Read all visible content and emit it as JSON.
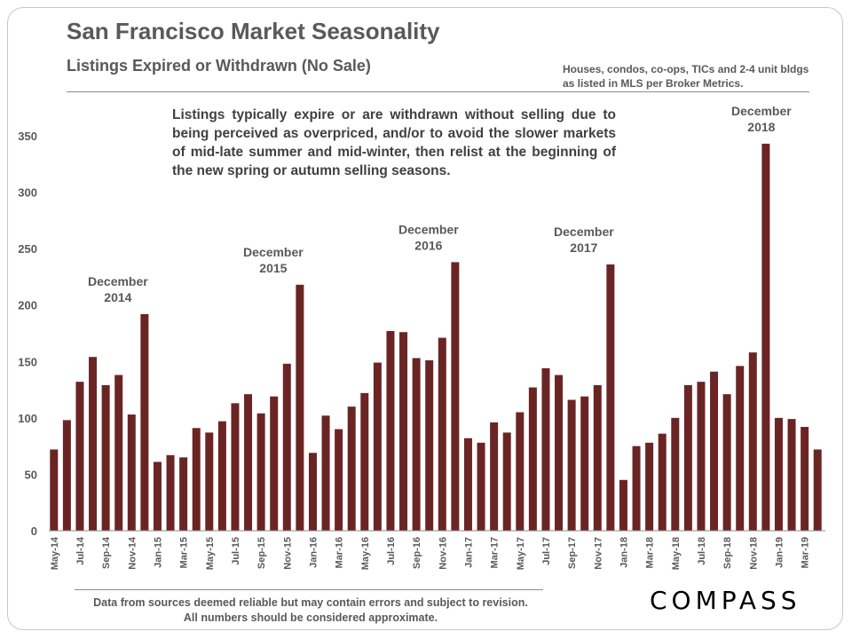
{
  "header": {
    "title": "San Francisco Market Seasonality",
    "subtitle": "Listings Expired or Withdrawn (No Sale)",
    "note": "Houses, condos, co-ops, TICs and 2-4 unit bldgs as listed in MLS per Broker Metrics."
  },
  "callout": "Listings typically expire or are withdrawn without selling due to being perceived as overpriced, and/or to avoid the slower markets of mid-late summer and mid-winter, then relist at the beginning of the new spring or autumn selling seasons.",
  "footer": {
    "disclaimer": "Data from sources deemed reliable but may contain errors and subject to revision.  All numbers should be considered approximate.",
    "logo": "COMPASS"
  },
  "colors": {
    "bar": "#6b2424",
    "text": "#595959"
  },
  "chart_data": {
    "type": "bar",
    "ylim": [
      0,
      350
    ],
    "yticks": [
      0,
      50,
      100,
      150,
      200,
      250,
      300,
      350
    ],
    "categories": [
      "May-14",
      "Jun-14",
      "Jul-14",
      "Aug-14",
      "Sep-14",
      "Oct-14",
      "Nov-14",
      "Dec-14",
      "Jan-15",
      "Feb-15",
      "Mar-15",
      "Apr-15",
      "May-15",
      "Jun-15",
      "Jul-15",
      "Aug-15",
      "Sep-15",
      "Oct-15",
      "Nov-15",
      "Dec-15",
      "Jan-16",
      "Feb-16",
      "Mar-16",
      "Apr-16",
      "May-16",
      "Jun-16",
      "Jul-16",
      "Aug-16",
      "Sep-16",
      "Oct-16",
      "Nov-16",
      "Dec-16",
      "Jan-17",
      "Feb-17",
      "Mar-17",
      "Apr-17",
      "May-17",
      "Jun-17",
      "Jul-17",
      "Aug-17",
      "Sep-17",
      "Oct-17",
      "Nov-17",
      "Dec-17",
      "Jan-18",
      "Feb-18",
      "Mar-18",
      "Apr-18",
      "May-18",
      "Jun-18",
      "Jul-18",
      "Aug-18",
      "Sep-18",
      "Oct-18",
      "Nov-18",
      "Dec-18",
      "Jan-19",
      "Feb-19",
      "Mar-19",
      "Apr-19"
    ],
    "visible_tick_labels": [
      "May-14",
      "Jul-14",
      "Sep-14",
      "Nov-14",
      "Jan-15",
      "Mar-15",
      "May-15",
      "Jul-15",
      "Sep-15",
      "Nov-15",
      "Jan-16",
      "Mar-16",
      "May-16",
      "Jul-16",
      "Sep-16",
      "Nov-16",
      "Jan-17",
      "Mar-17",
      "May-17",
      "Jul-17",
      "Sep-17",
      "Nov-17",
      "Jan-18",
      "Mar-18",
      "May-18",
      "Jul-18",
      "Sep-18",
      "Nov-18",
      "Jan-19",
      "Mar-19"
    ],
    "values": [
      72,
      98,
      132,
      154,
      129,
      138,
      103,
      192,
      61,
      67,
      65,
      91,
      87,
      97,
      113,
      121,
      104,
      119,
      148,
      218,
      69,
      102,
      90,
      110,
      122,
      149,
      177,
      176,
      153,
      151,
      171,
      238,
      82,
      78,
      96,
      87,
      105,
      127,
      144,
      138,
      116,
      119,
      129,
      236,
      45,
      75,
      78,
      86,
      100,
      129,
      132,
      141,
      121,
      146,
      158,
      343,
      100,
      99,
      92,
      72
    ],
    "annotations": [
      {
        "line1": "December",
        "line2": "2014",
        "category": "Dec-14"
      },
      {
        "line1": "December",
        "line2": "2015",
        "category": "Dec-15"
      },
      {
        "line1": "December",
        "line2": "2016",
        "category": "Dec-16"
      },
      {
        "line1": "December",
        "line2": "2017",
        "category": "Dec-17"
      },
      {
        "line1": "December",
        "line2": "2018",
        "category": "Dec-18"
      }
    ]
  }
}
